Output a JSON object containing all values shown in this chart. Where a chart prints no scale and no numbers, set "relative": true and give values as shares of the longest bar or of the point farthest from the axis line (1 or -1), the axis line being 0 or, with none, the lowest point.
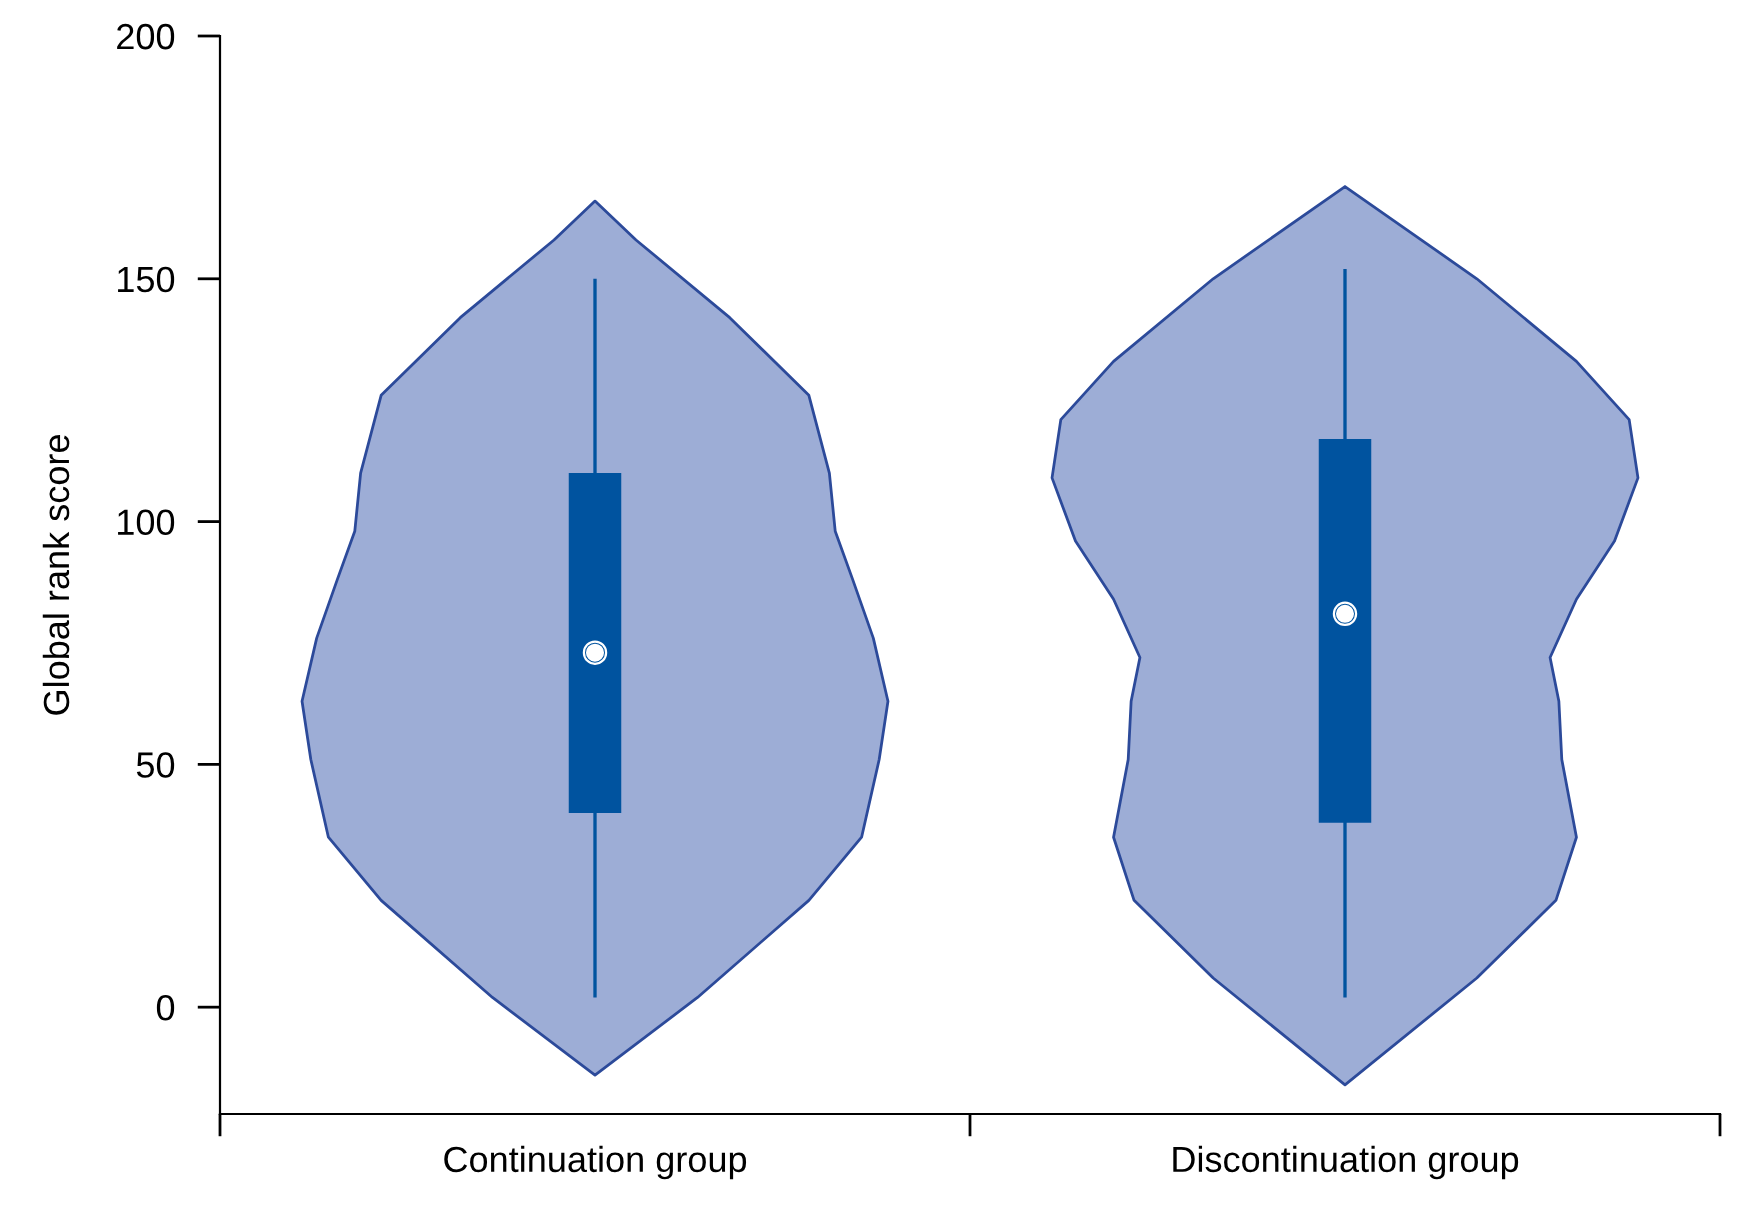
{
  "chart_data": [
    {
      "type": "box",
      "ylabel": "Global rank score",
      "categories": [
        "Continuation group",
        "Discontinuation group"
      ],
      "boxes": [
        {
          "low": 2,
          "q1": 40,
          "median": 73,
          "q3": 110,
          "high": 150
        },
        {
          "low": 2,
          "q1": 38,
          "median": 81,
          "q3": 117,
          "high": 152
        }
      ],
      "color": "#00539f",
      "ylim": [
        -22,
        200
      ],
      "yticks": [
        0,
        50,
        100,
        150,
        200
      ],
      "grid": false,
      "legend": false
    },
    {
      "type": "area",
      "orientation": "horizontal",
      "relative": true,
      "ylim": [
        -22,
        200
      ],
      "x": [
        166,
        158,
        142,
        126,
        110,
        98,
        88,
        76,
        63,
        51,
        35,
        22,
        2,
        -14
      ],
      "series": [
        {
          "color": "#9dadd6",
          "values": [
            0,
            0.14,
            0.46,
            0.73,
            0.8,
            0.82,
            0.88,
            0.95,
            1,
            0.97,
            0.91,
            0.73,
            0.35,
            0
          ]
        }
      ]
    },
    {
      "type": "area",
      "orientation": "horizontal",
      "relative": true,
      "ylim": [
        -22,
        200
      ],
      "x": [
        169,
        150,
        133,
        121,
        109,
        96,
        84,
        72,
        63,
        51,
        35,
        22,
        6,
        -16
      ],
      "series": [
        {
          "color": "#9dadd6",
          "values": [
            0,
            0.45,
            0.79,
            0.97,
            1,
            0.92,
            0.79,
            0.7,
            0.73,
            0.74,
            0.79,
            0.72,
            0.45,
            0
          ]
        }
      ]
    }
  ]
}
